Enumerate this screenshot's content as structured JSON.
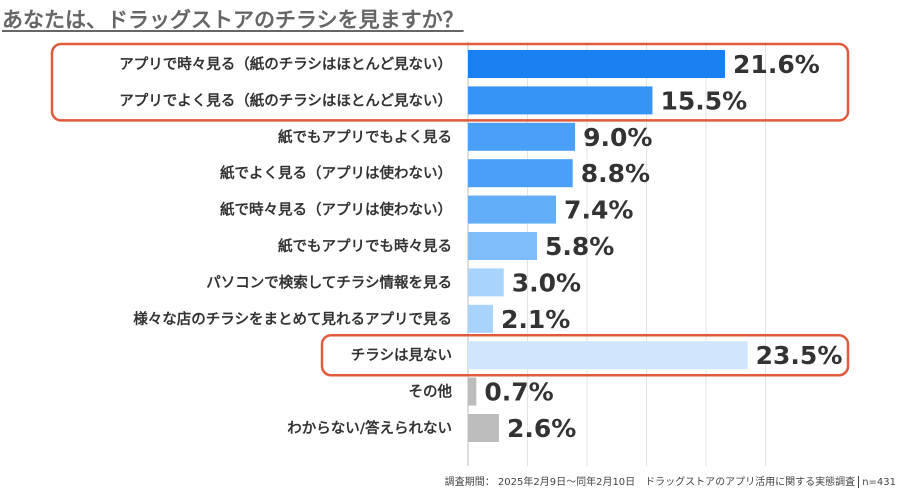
{
  "title": "あなたは、ドラッグストアのチラシを見ますか？",
  "footnote": {
    "survey": "調査期間： 2025年2月9日〜同年2月10日　ドラッグストアのアプリ活用に関する実態調査",
    "n": "n=431"
  },
  "colors": {
    "dark_blue": "#1a7ff0",
    "blue": "#3493f5",
    "mid_blue": "#4aa0f7",
    "light_blue": "#62adf8",
    "pale_blue": "#7fbcfa",
    "very_pale_blue": "#a8d3fb",
    "palest_blue": "#cfe6fd",
    "gray": "#bdbdbd",
    "highlight_box": "#e05a3c"
  },
  "chart_data": {
    "type": "bar",
    "orientation": "horizontal",
    "categories": [
      "アプリで時々見る（紙のチラシはほとんど見ない）",
      "アプリでよく見る（紙のチラシはほとんど見ない）",
      "紙でもアプリでもよく見る",
      "紙でよく見る（アプリは使わない）",
      "紙で時々見る（アプリは使わない）",
      "紙でもアプリでも時々見る",
      "パソコンで検索してチラシ情報を見る",
      "様々な店のチラシをまとめて見れるアプリで見る",
      "チラシは見ない",
      "その他",
      "わからない/答えられない"
    ],
    "values": [
      21.6,
      15.5,
      9.0,
      8.8,
      7.4,
      5.8,
      3.0,
      2.1,
      23.5,
      0.7,
      2.6
    ],
    "value_labels": [
      "21.6%",
      "15.5%",
      "9.0%",
      "8.8%",
      "7.4%",
      "5.8%",
      "3.0%",
      "2.1%",
      "23.5%",
      "0.7%",
      "2.6%"
    ],
    "bar_colors": [
      "dark_blue",
      "blue",
      "mid_blue",
      "mid_blue",
      "light_blue",
      "pale_blue",
      "very_pale_blue",
      "very_pale_blue",
      "palest_blue",
      "gray",
      "gray"
    ],
    "highlight_groups": [
      [
        0,
        1
      ],
      [
        8
      ]
    ],
    "xlim": [
      0,
      25
    ],
    "grid": true
  }
}
